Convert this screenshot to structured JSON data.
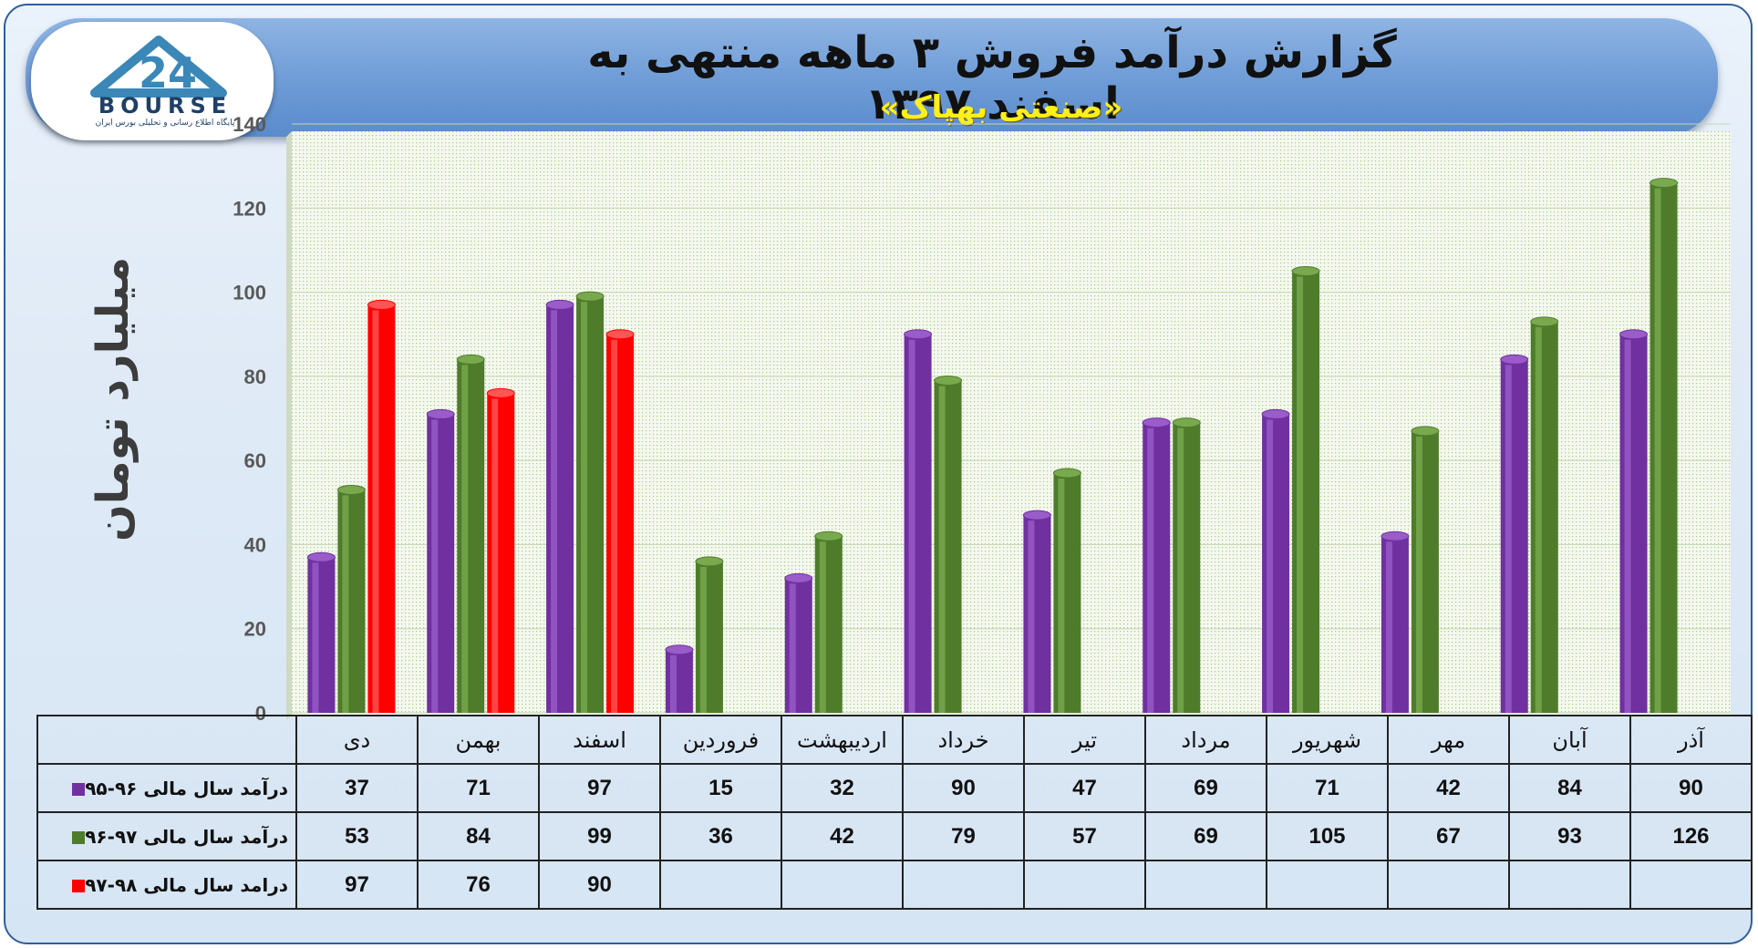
{
  "header": {
    "title": "گزارش درآمد فروش ۳ ماهه منتهی به اسفند ۱۳۹۷",
    "subtitle": "«صنعتی بهپاک»"
  },
  "logo": {
    "number": "24",
    "word": "BOURSE",
    "subtext": "پایگاه اطلاع رسانی و تحلیلی بورس ایران"
  },
  "chart_data": {
    "type": "bar",
    "title": "گزارش درآمد فروش ۳ ماهه منتهی به اسفند ۱۳۹۷",
    "subtitle": "«صنعتی بهپاک»",
    "ylabel": "میلیارد تومان",
    "ylim": [
      0,
      140
    ],
    "yticks": [
      0,
      20,
      40,
      60,
      80,
      100,
      120,
      140
    ],
    "grid": true,
    "categories": [
      "دی",
      "بهمن",
      "اسفند",
      "فروردین",
      "اردیبهشت",
      "خرداد",
      "تیر",
      "مرداد",
      "شهریور",
      "مهر",
      "آبان",
      "آذر"
    ],
    "series": [
      {
        "name": "درآمد سال مالی ۹۶-۹۵",
        "color": "#7030a0",
        "values": [
          37,
          71,
          97,
          15,
          32,
          90,
          47,
          69,
          71,
          42,
          84,
          90
        ]
      },
      {
        "name": "درآمد سال مالی ۹۷-۹۶",
        "color": "#4e7c2a",
        "values": [
          53,
          84,
          99,
          36,
          42,
          79,
          57,
          69,
          105,
          67,
          93,
          126
        ]
      },
      {
        "name": "درامد سال مالی ۹۸-۹۷",
        "color": "#ff0000",
        "values": [
          97,
          76,
          90,
          null,
          null,
          null,
          null,
          null,
          null,
          null,
          null,
          null
        ]
      }
    ]
  }
}
